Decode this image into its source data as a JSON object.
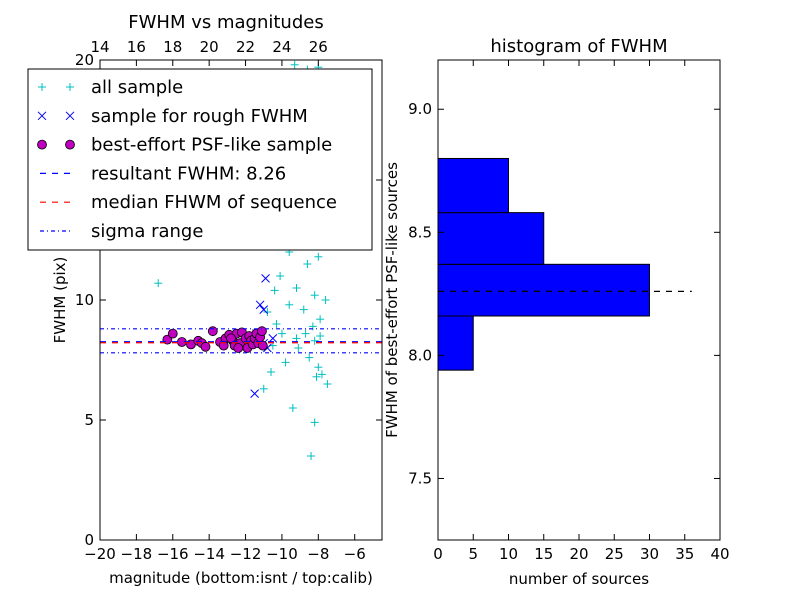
{
  "chart_data": [
    {
      "type": "scatter",
      "title": "FWHM vs magnitudes",
      "xlabel": "magnitude (bottom:isnt / top:calib)",
      "ylabel": "FWHM (pix)",
      "xlim": [
        -20,
        -4.5
      ],
      "ylim": [
        0,
        20
      ],
      "xticks": [
        -20,
        -18,
        -16,
        -14,
        -12,
        -10,
        -8,
        -6
      ],
      "xtick_labels": [
        "−20",
        "−18",
        "−16",
        "−14",
        "−12",
        "−10",
        "−8",
        "−6"
      ],
      "yticks": [
        0,
        5,
        10,
        15,
        20
      ],
      "ytick_labels": [
        "0",
        "5",
        "10",
        "15",
        "20"
      ],
      "top_xticks": [
        14,
        16,
        18,
        20,
        22,
        24,
        26
      ],
      "top_xtick_labels": [
        "14",
        "16",
        "18",
        "20",
        "22",
        "24",
        "26"
      ],
      "top_axis_offset": 34,
      "legend_position": "upper-left",
      "legend": [
        {
          "label": "all sample",
          "marker": "plus",
          "color": "#00bfbf"
        },
        {
          "label": "sample for rough FWHM",
          "marker": "x",
          "color": "#0000ff"
        },
        {
          "label": "best-effort PSF-like sample",
          "marker": "circle",
          "color": "#bf00bf"
        },
        {
          "label": "resultant FWHM: 8.26",
          "marker": "dashed",
          "color": "#0000ff"
        },
        {
          "label": "median FHWM of sequence",
          "marker": "dashed",
          "color": "#ff0000"
        },
        {
          "label": "sigma range",
          "marker": "dashdot",
          "color": "#0000ff"
        }
      ],
      "hlines": [
        {
          "name": "resultant FWHM",
          "y": 8.26,
          "style": "dashed",
          "color": "#0000ff"
        },
        {
          "name": "median FHWM of sequence",
          "y": 8.22,
          "style": "dashed",
          "color": "#ff0000"
        },
        {
          "name": "sigma range upper",
          "y": 8.8,
          "style": "dashdot",
          "color": "#0000ff"
        },
        {
          "name": "sigma range lower",
          "y": 7.8,
          "style": "dashdot",
          "color": "#0000ff"
        }
      ],
      "series": [
        {
          "name": "all sample",
          "marker": "plus",
          "color": "#00bfbf",
          "points": [
            [
              -16.8,
              10.7
            ],
            [
              -13.0,
              8.5
            ],
            [
              -11.6,
              8.2
            ],
            [
              -11.0,
              6.3
            ],
            [
              -10.8,
              9.5
            ],
            [
              -10.6,
              7.0
            ],
            [
              -10.5,
              8.1
            ],
            [
              -10.3,
              9.0
            ],
            [
              -10.1,
              11.0
            ],
            [
              -10.0,
              8.6
            ],
            [
              -9.8,
              7.4
            ],
            [
              -9.6,
              12.0
            ],
            [
              -9.4,
              5.5
            ],
            [
              -9.2,
              10.5
            ],
            [
              -9.1,
              8.0
            ],
            [
              -8.9,
              13.0
            ],
            [
              -8.8,
              9.6
            ],
            [
              -8.6,
              11.5
            ],
            [
              -8.5,
              7.6
            ],
            [
              -8.4,
              12.8
            ],
            [
              -8.3,
              8.9
            ],
            [
              -8.2,
              10.2
            ],
            [
              -8.2,
              4.9
            ],
            [
              -8.1,
              6.8
            ],
            [
              -8.0,
              11.8
            ],
            [
              -8.0,
              7.2
            ],
            [
              -7.9,
              9.2
            ],
            [
              -7.8,
              6.9
            ],
            [
              -7.7,
              13.5
            ],
            [
              -7.6,
              10.0
            ],
            [
              -7.5,
              6.5
            ],
            [
              -8.4,
              3.5
            ],
            [
              -9.3,
              19.8
            ],
            [
              -8.6,
              19.6
            ],
            [
              -8.0,
              19.7
            ],
            [
              -9.0,
              16.0
            ],
            [
              -8.7,
              17.2
            ],
            [
              -8.3,
              15.5
            ],
            [
              -9.5,
              14.5
            ],
            [
              -8.1,
              14.2
            ],
            [
              -8.9,
              18.3
            ],
            [
              -8.5,
              13.8
            ],
            [
              -9.2,
              8.4
            ],
            [
              -8.7,
              8.6
            ],
            [
              -8.2,
              8.3
            ],
            [
              -7.9,
              8.5
            ],
            [
              -9.6,
              9.8
            ],
            [
              -10.4,
              10.4
            ]
          ]
        },
        {
          "name": "sample for rough FWHM",
          "marker": "x",
          "color": "#0000ff",
          "points": [
            [
              -11.5,
              6.1
            ],
            [
              -11.2,
              9.8
            ],
            [
              -11.0,
              9.6
            ],
            [
              -10.9,
              10.9
            ],
            [
              -11.4,
              8.6
            ],
            [
              -11.0,
              8.2
            ],
            [
              -10.8,
              8.0
            ],
            [
              -10.5,
              8.4
            ]
          ]
        },
        {
          "name": "best-effort PSF-like sample",
          "marker": "circle",
          "color": "#bf00bf",
          "points": [
            [
              -16.3,
              8.35
            ],
            [
              -16.0,
              8.6
            ],
            [
              -15.5,
              8.25
            ],
            [
              -15.0,
              8.15
            ],
            [
              -14.6,
              8.3
            ],
            [
              -14.4,
              8.2
            ],
            [
              -13.8,
              8.7
            ],
            [
              -13.4,
              8.25
            ],
            [
              -13.1,
              8.4
            ],
            [
              -12.9,
              8.55
            ],
            [
              -12.7,
              8.3
            ],
            [
              -12.6,
              8.1
            ],
            [
              -12.5,
              8.6
            ],
            [
              -12.3,
              8.2
            ],
            [
              -12.2,
              8.65
            ],
            [
              -12.0,
              8.4
            ],
            [
              -11.9,
              8.0
            ],
            [
              -11.8,
              8.5
            ],
            [
              -11.7,
              8.3
            ],
            [
              -11.6,
              8.15
            ],
            [
              -11.5,
              8.4
            ],
            [
              -11.4,
              8.6
            ],
            [
              -11.3,
              8.2
            ],
            [
              -11.2,
              8.45
            ],
            [
              -11.1,
              8.7
            ],
            [
              -11.05,
              8.1
            ],
            [
              -12.4,
              8.0
            ],
            [
              -13.2,
              8.1
            ],
            [
              -14.2,
              8.05
            ],
            [
              -12.8,
              8.4
            ]
          ]
        }
      ]
    },
    {
      "type": "bar",
      "orientation": "horizontal",
      "title": "histogram of FWHM",
      "xlabel": "number of sources",
      "ylabel": "FWHM of best-effort PSF-like sources",
      "xlim": [
        0,
        40
      ],
      "ylim": [
        7.25,
        9.2
      ],
      "xticks": [
        0,
        5,
        10,
        15,
        20,
        25,
        30,
        35,
        40
      ],
      "xtick_labels": [
        "0",
        "5",
        "10",
        "15",
        "20",
        "25",
        "30",
        "35",
        "40"
      ],
      "yticks": [
        7.5,
        8.0,
        8.5,
        9.0
      ],
      "ytick_labels": [
        "7.5",
        "8.0",
        "8.5",
        "9.0"
      ],
      "bars": [
        {
          "y0": 7.94,
          "y1": 8.16,
          "count": 5
        },
        {
          "y0": 8.16,
          "y1": 8.37,
          "count": 30
        },
        {
          "y0": 8.37,
          "y1": 8.58,
          "count": 15
        },
        {
          "y0": 8.58,
          "y1": 8.8,
          "count": 10
        }
      ],
      "bar_color": "#0000ff",
      "reference_line": {
        "y": 8.26,
        "x0": 0,
        "x1": 36,
        "style": "dashed",
        "color": "#000000"
      }
    }
  ]
}
